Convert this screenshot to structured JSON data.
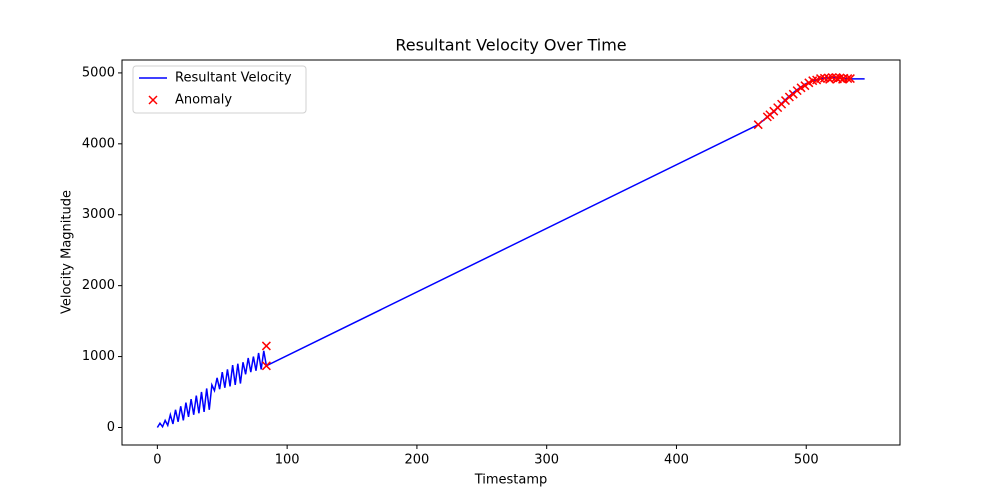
{
  "chart_data": {
    "type": "line",
    "title": "Resultant Velocity Over Time",
    "x_label": "Timestamp",
    "y_label": "Velocity Magnitude",
    "xlim": [
      -27.25,
      572.25
    ],
    "xticks": [
      0,
      100,
      200,
      300,
      400,
      500
    ],
    "ylim": [
      -247,
      5182
    ],
    "yticks": [
      0,
      1000,
      2000,
      3000,
      4000,
      5000
    ],
    "legend": "upper left",
    "series": [
      {
        "name": "Resultant Velocity",
        "type": "line",
        "color": "#0000ff",
        "x": [
          0,
          2,
          4,
          6,
          8,
          10,
          12,
          14,
          16,
          18,
          20,
          22,
          24,
          26,
          28,
          30,
          32,
          34,
          36,
          38,
          40,
          42,
          44,
          46,
          48,
          50,
          52,
          54,
          56,
          58,
          60,
          62,
          64,
          66,
          68,
          70,
          72,
          74,
          76,
          78,
          80,
          82,
          84,
          463,
          470,
          475,
          480,
          485,
          490,
          495,
          500,
          505,
          510,
          515,
          520,
          525,
          530,
          535,
          545
        ],
        "values": [
          0,
          60,
          10,
          100,
          30,
          180,
          50,
          250,
          80,
          300,
          100,
          350,
          150,
          400,
          180,
          450,
          200,
          500,
          220,
          550,
          250,
          600,
          520,
          700,
          540,
          780,
          560,
          820,
          580,
          880,
          600,
          900,
          620,
          920,
          750,
          980,
          780,
          1000,
          800,
          1050,
          820,
          1080,
          870,
          4270,
          4380,
          4450,
          4550,
          4640,
          4720,
          4790,
          4850,
          4890,
          4915,
          4930,
          4935,
          4930,
          4920,
          4915,
          4915
        ]
      },
      {
        "name": "Anomaly",
        "type": "scatter",
        "color": "#ff0000",
        "x": [
          84,
          84,
          463,
          470,
          472,
          475,
          478,
          481,
          484,
          487,
          490,
          493,
          496,
          499,
          502,
          505,
          508,
          511,
          514,
          517,
          520,
          523,
          526,
          529,
          532,
          534,
          518,
          524,
          528
        ],
        "values": [
          1150,
          870,
          4270,
          4380,
          4410,
          4460,
          4510,
          4560,
          4610,
          4660,
          4700,
          4750,
          4790,
          4820,
          4860,
          4890,
          4900,
          4920,
          4925,
          4930,
          4935,
          4935,
          4930,
          4925,
          4920,
          4920,
          4910,
          4915,
          4910
        ]
      }
    ]
  }
}
